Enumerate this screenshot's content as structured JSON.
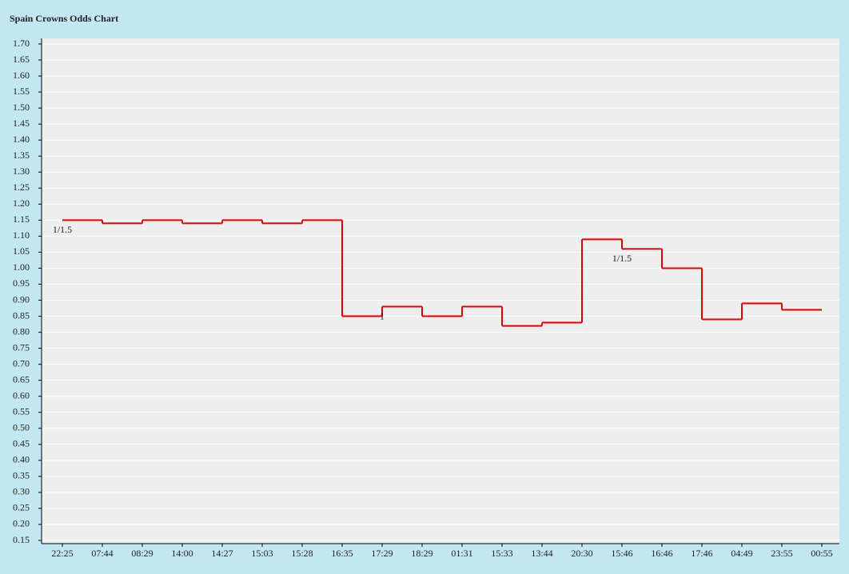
{
  "chart_data": {
    "type": "step",
    "title": "Spain Crowns Odds Chart",
    "categories": [
      "22:25",
      "07:44",
      "08:29",
      "14:00",
      "14:27",
      "15:03",
      "15:28",
      "16:35",
      "17:29",
      "18:29",
      "01:31",
      "15:33",
      "13:44",
      "20:30",
      "15:46",
      "16:46",
      "17:46",
      "04:49",
      "23:55",
      "00:55"
    ],
    "values": [
      1.15,
      1.14,
      1.15,
      1.14,
      1.15,
      1.14,
      1.15,
      0.85,
      0.88,
      0.85,
      0.88,
      0.82,
      0.83,
      1.09,
      1.06,
      1.0,
      0.84,
      0.89,
      0.87,
      0.87
    ],
    "color": "#e00000",
    "ylim": [
      0.15,
      1.7
    ],
    "yticks": [
      {
        "value": 0.15,
        "label": "0.15"
      },
      {
        "value": 0.2,
        "label": "0.20"
      },
      {
        "value": 0.25,
        "label": "0.25"
      },
      {
        "value": 0.3,
        "label": "0.30"
      },
      {
        "value": 0.35,
        "label": "0.35"
      },
      {
        "value": 0.4,
        "label": "0.40"
      },
      {
        "value": 0.45,
        "label": "0.45"
      },
      {
        "value": 0.5,
        "label": "0.50"
      },
      {
        "value": 0.55,
        "label": "0.55"
      },
      {
        "value": 0.6,
        "label": "0.60"
      },
      {
        "value": 0.65,
        "label": "0.65"
      },
      {
        "value": 0.7,
        "label": "0.70"
      },
      {
        "value": 0.75,
        "label": "0.75"
      },
      {
        "value": 0.8,
        "label": "0.80"
      },
      {
        "value": 0.85,
        "label": "0.85"
      },
      {
        "value": 0.9,
        "label": "0.90"
      },
      {
        "value": 0.95,
        "label": "0.95"
      },
      {
        "value": 1.0,
        "label": "1.00"
      },
      {
        "value": 1.05,
        "label": "1.05"
      },
      {
        "value": 1.1,
        "label": "1.10"
      },
      {
        "value": 1.15,
        "label": "1.15"
      },
      {
        "value": 1.2,
        "label": "1.20"
      },
      {
        "value": 1.25,
        "label": "1.25"
      },
      {
        "value": 1.3,
        "label": "1.30"
      },
      {
        "value": 1.35,
        "label": "1.35"
      },
      {
        "value": 1.4,
        "label": "1.40"
      },
      {
        "value": 1.45,
        "label": "1.45"
      },
      {
        "value": 1.5,
        "label": "1.50"
      },
      {
        "value": 1.55,
        "label": "1.55"
      },
      {
        "value": 1.6,
        "label": "1.60"
      },
      {
        "value": 1.65,
        "label": "1.65"
      },
      {
        "value": 1.7,
        "label": "1.70"
      }
    ],
    "grid": true,
    "annotations": [
      {
        "text": "1/1.5",
        "x": "22:25"
      },
      {
        "text": "1",
        "x": "17:29"
      },
      {
        "text": "1/1.5",
        "x": "15:46"
      }
    ]
  }
}
